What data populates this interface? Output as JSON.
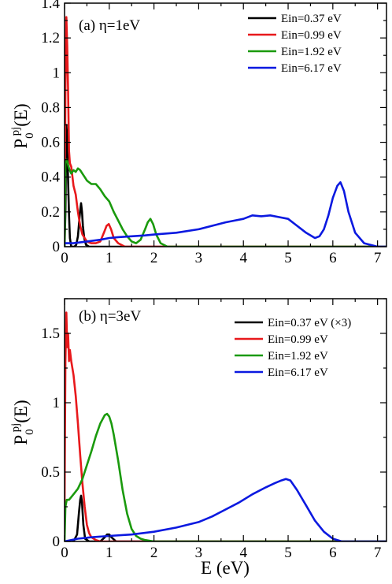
{
  "chart_data": [
    {
      "type": "line",
      "panel_label": "(a) η=1eV",
      "ylabel": "P",
      "ylabel_subscript": "0",
      "ylabel_superscript": "pj",
      "ylabel_suffix": "(E)",
      "xlabel": "",
      "xlim": [
        0,
        7.2
      ],
      "ylim": [
        0,
        1.4
      ],
      "xticks": [
        0,
        1,
        2,
        3,
        4,
        5,
        6,
        7
      ],
      "yticks": [
        0,
        0.2,
        0.4,
        0.6,
        0.8,
        1,
        1.2,
        1.4
      ],
      "ytick_labels": [
        "0",
        "0.2",
        "0.4",
        "0.6",
        "0.8",
        "1",
        "1.2",
        "1.4"
      ],
      "xtick_labels": [
        "0",
        "1",
        "2",
        "3",
        "4",
        "5",
        "6",
        "7"
      ],
      "legend_position": "top-right",
      "series": [
        {
          "name": "Ein=0.37 eV",
          "color": "#000000",
          "x": [
            0.0,
            0.02,
            0.04,
            0.06,
            0.08,
            0.1,
            0.12,
            0.15,
            0.18,
            0.22,
            0.26,
            0.3,
            0.33,
            0.35,
            0.37,
            0.39,
            0.41,
            0.44,
            0.48,
            0.55,
            0.65,
            0.8,
            1.0,
            7.2
          ],
          "y": [
            0.0,
            0.2,
            0.7,
            0.62,
            0.38,
            0.18,
            0.05,
            0.0,
            0.0,
            0.0,
            0.01,
            0.06,
            0.15,
            0.21,
            0.25,
            0.2,
            0.12,
            0.05,
            0.01,
            0.0,
            0.0,
            0.0,
            0.0,
            0.0
          ]
        },
        {
          "name": "Ein=0.99 eV",
          "color": "#e8191c",
          "x": [
            0.0,
            0.02,
            0.04,
            0.06,
            0.08,
            0.1,
            0.12,
            0.15,
            0.2,
            0.25,
            0.3,
            0.35,
            0.4,
            0.5,
            0.6,
            0.7,
            0.8,
            0.88,
            0.94,
            0.99,
            1.04,
            1.1,
            1.2,
            1.35,
            1.5,
            7.2
          ],
          "y": [
            0.05,
            0.9,
            1.32,
            1.15,
            0.9,
            0.55,
            0.48,
            0.46,
            0.35,
            0.3,
            0.2,
            0.12,
            0.07,
            0.03,
            0.02,
            0.02,
            0.03,
            0.08,
            0.12,
            0.13,
            0.1,
            0.05,
            0.02,
            0.0,
            0.0,
            0.0
          ]
        },
        {
          "name": "Ein=1.92 eV",
          "color": "#1a9a0d",
          "x": [
            0.0,
            0.02,
            0.05,
            0.1,
            0.15,
            0.2,
            0.25,
            0.3,
            0.35,
            0.4,
            0.45,
            0.5,
            0.6,
            0.7,
            0.8,
            0.9,
            1.0,
            1.1,
            1.2,
            1.3,
            1.4,
            1.5,
            1.6,
            1.7,
            1.8,
            1.86,
            1.92,
            1.98,
            2.05,
            2.15,
            2.3,
            2.5,
            3.0,
            7.2
          ],
          "y": [
            0.0,
            0.48,
            0.5,
            0.45,
            0.42,
            0.44,
            0.43,
            0.45,
            0.44,
            0.42,
            0.4,
            0.38,
            0.36,
            0.36,
            0.33,
            0.29,
            0.26,
            0.2,
            0.15,
            0.1,
            0.06,
            0.03,
            0.02,
            0.04,
            0.1,
            0.14,
            0.16,
            0.13,
            0.07,
            0.02,
            0.0,
            0.0,
            0.0,
            0.0
          ]
        },
        {
          "name": "Ein=6.17 eV",
          "color": "#0b19e0",
          "x": [
            0.0,
            0.2,
            0.5,
            0.8,
            1.0,
            1.2,
            1.5,
            1.8,
            2.0,
            2.5,
            3.0,
            3.3,
            3.6,
            3.8,
            4.0,
            4.2,
            4.4,
            4.6,
            4.8,
            5.0,
            5.2,
            5.4,
            5.6,
            5.7,
            5.8,
            5.9,
            6.0,
            6.1,
            6.17,
            6.25,
            6.35,
            6.5,
            6.7,
            7.0,
            7.2
          ],
          "y": [
            0.02,
            0.02,
            0.03,
            0.04,
            0.05,
            0.055,
            0.06,
            0.065,
            0.07,
            0.08,
            0.1,
            0.12,
            0.14,
            0.15,
            0.16,
            0.18,
            0.175,
            0.18,
            0.17,
            0.16,
            0.12,
            0.08,
            0.05,
            0.06,
            0.1,
            0.18,
            0.28,
            0.35,
            0.37,
            0.32,
            0.2,
            0.08,
            0.02,
            0.0,
            0.0
          ]
        }
      ]
    },
    {
      "type": "line",
      "panel_label": "(b) η=3eV",
      "ylabel": "P",
      "ylabel_subscript": "0",
      "ylabel_superscript": "pj",
      "ylabel_suffix": "(E)",
      "xlabel": "E (eV)",
      "xlim": [
        0,
        7.2
      ],
      "ylim": [
        0,
        1.75
      ],
      "xticks": [
        0,
        1,
        2,
        3,
        4,
        5,
        6,
        7
      ],
      "yticks": [
        0,
        0.5,
        1,
        1.5
      ],
      "ytick_labels": [
        "0",
        "0.5",
        "1",
        "1.5"
      ],
      "xtick_labels": [
        "0",
        "1",
        "2",
        "3",
        "4",
        "5",
        "6",
        "7"
      ],
      "legend_position": "top-right",
      "series": [
        {
          "name": "Ein=0.37 eV (×3)",
          "color": "#000000",
          "x": [
            0.0,
            0.2,
            0.28,
            0.32,
            0.35,
            0.37,
            0.39,
            0.42,
            0.46,
            0.55,
            0.8,
            0.9,
            0.95,
            1.0,
            1.05,
            1.15,
            7.2
          ],
          "y": [
            0.0,
            0.0,
            0.05,
            0.2,
            0.3,
            0.33,
            0.28,
            0.12,
            0.02,
            0.0,
            0.0,
            0.03,
            0.05,
            0.05,
            0.03,
            0.0,
            0.0
          ]
        },
        {
          "name": "Ein=0.99 eV",
          "color": "#e8191c",
          "x": [
            0.0,
            0.02,
            0.04,
            0.06,
            0.08,
            0.1,
            0.12,
            0.15,
            0.2,
            0.25,
            0.3,
            0.35,
            0.4,
            0.45,
            0.5,
            0.55,
            0.6,
            0.7,
            0.8,
            0.9,
            7.2
          ],
          "y": [
            0.25,
            1.3,
            1.65,
            1.4,
            1.5,
            1.3,
            1.38,
            1.3,
            1.2,
            1.05,
            0.85,
            0.62,
            0.42,
            0.25,
            0.12,
            0.06,
            0.03,
            0.01,
            0.0,
            0.0,
            0.0
          ]
        },
        {
          "name": "Ein=1.92 eV",
          "color": "#1a9a0d",
          "x": [
            0.0,
            0.02,
            0.05,
            0.1,
            0.2,
            0.3,
            0.4,
            0.5,
            0.6,
            0.7,
            0.8,
            0.9,
            0.95,
            1.0,
            1.05,
            1.1,
            1.2,
            1.3,
            1.4,
            1.5,
            1.6,
            1.7,
            1.8,
            2.0,
            7.2
          ],
          "y": [
            0.0,
            0.25,
            0.3,
            0.3,
            0.34,
            0.38,
            0.45,
            0.55,
            0.65,
            0.76,
            0.85,
            0.91,
            0.92,
            0.9,
            0.85,
            0.77,
            0.58,
            0.37,
            0.2,
            0.09,
            0.04,
            0.02,
            0.01,
            0.0,
            0.0
          ]
        },
        {
          "name": "Ein=6.17 eV",
          "color": "#0b19e0",
          "x": [
            0.0,
            0.3,
            0.6,
            1.0,
            1.5,
            2.0,
            2.5,
            3.0,
            3.3,
            3.6,
            3.9,
            4.2,
            4.5,
            4.7,
            4.85,
            4.95,
            5.05,
            5.2,
            5.4,
            5.6,
            5.8,
            6.0,
            6.2,
            6.4,
            7.2
          ],
          "y": [
            0.0,
            0.02,
            0.03,
            0.04,
            0.05,
            0.07,
            0.1,
            0.14,
            0.18,
            0.23,
            0.28,
            0.34,
            0.39,
            0.42,
            0.44,
            0.45,
            0.44,
            0.37,
            0.26,
            0.15,
            0.07,
            0.02,
            0.0,
            0.0,
            0.0
          ]
        }
      ]
    }
  ]
}
